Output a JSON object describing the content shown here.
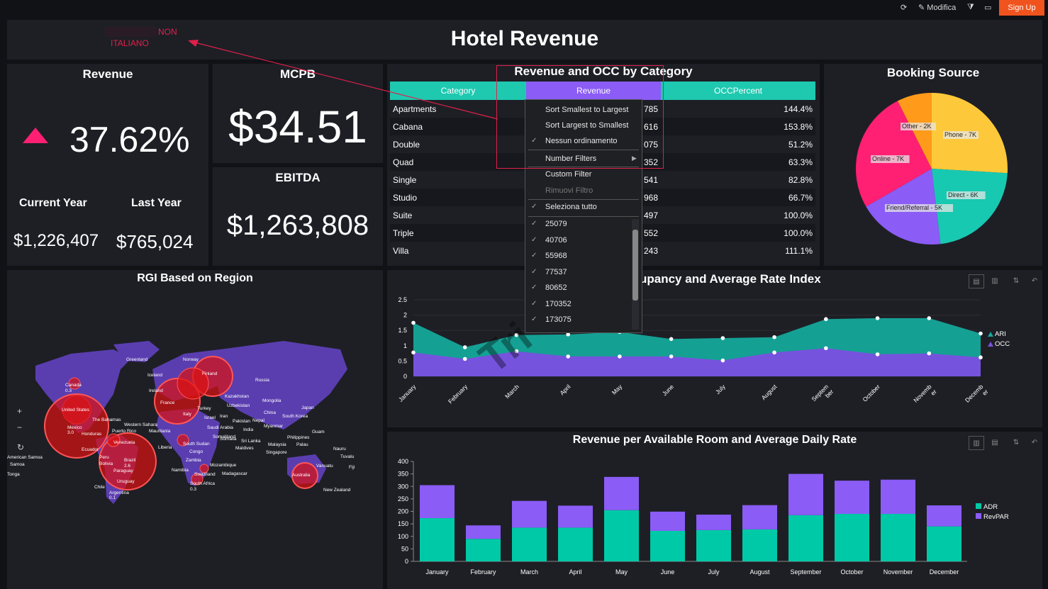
{
  "topbar": {
    "edit_label": "Modifica",
    "signup_label": "Sign Up"
  },
  "header": {
    "title": "Hotel Revenue",
    "annotation_line1": "NON",
    "annotation_line2": "ITALIANO"
  },
  "revenue_panel": {
    "title": "Revenue",
    "change": "37.62%",
    "current_year_label": "Current Year",
    "last_year_label": "Last Year",
    "current_year_value": "$1,226,407",
    "last_year_value": "$765,024"
  },
  "mcpb_panel": {
    "title": "MCPB",
    "value": "$34.51"
  },
  "ebitda_panel": {
    "title": "EBITDA",
    "value": "$1,263,808"
  },
  "category_table": {
    "title": "Revenue and OCC by Category",
    "headers": [
      "Category",
      "Revenue",
      "OCCPercent"
    ],
    "rows": [
      {
        "category": "Apartments",
        "revenue": "785",
        "occ": "144.4%"
      },
      {
        "category": "Cabana",
        "revenue": "616",
        "occ": "153.8%"
      },
      {
        "category": "Double",
        "revenue": "075",
        "occ": "51.2%"
      },
      {
        "category": "Quad",
        "revenue": "352",
        "occ": "63.3%"
      },
      {
        "category": "Single",
        "revenue": "541",
        "occ": "82.8%"
      },
      {
        "category": "Studio",
        "revenue": "968",
        "occ": "66.7%"
      },
      {
        "category": "Suite",
        "revenue": "497",
        "occ": "100.0%"
      },
      {
        "category": "Triple",
        "revenue": "552",
        "occ": "100.0%"
      },
      {
        "category": "Villa",
        "revenue": "243",
        "occ": "111.1%"
      }
    ],
    "colors": {
      "category_header": "#1ec9b0",
      "revenue_header": "#8b5cf6"
    }
  },
  "dropdown": {
    "items": [
      {
        "label": "Sort Smallest to Largest",
        "checked": false,
        "disabled": false
      },
      {
        "label": "Sort Largest to Smallest",
        "checked": false,
        "disabled": false
      },
      {
        "label": "Nessun ordinamento",
        "checked": true,
        "disabled": false
      },
      {
        "label": "Number Filters",
        "checked": false,
        "disabled": false,
        "submenu": true
      },
      {
        "label": "Custom Filter",
        "checked": false,
        "disabled": false
      },
      {
        "label": "Rimuovi Filtro",
        "checked": false,
        "disabled": true
      },
      {
        "label": "Seleziona tutto",
        "checked": true,
        "disabled": false
      }
    ],
    "values": [
      "25079",
      "40706",
      "55968",
      "77537",
      "80652",
      "170352",
      "173075"
    ]
  },
  "booking_source": {
    "title": "Booking Source"
  },
  "map_panel": {
    "title": "RGI Based on Region",
    "zoom_in": "+",
    "zoom_out": "−",
    "reset": "↻",
    "labels": [
      "Greenland",
      "Iceland",
      "Norway",
      "Finland",
      "Russia",
      "Ireland",
      "Canada",
      "0.3",
      "Kazakhstan",
      "Mongolia",
      "Uzbekistan",
      "Japan",
      "China",
      "South Korea",
      "United States",
      "The Bahamas",
      "Western Sahara",
      "Puerto Rico",
      "Mauritania",
      "Saudi Arabia",
      "India",
      "Myanmar",
      "Pakistan",
      "Nepal",
      "Iran",
      "Israel",
      "Turkey",
      "France",
      "Italy",
      "Mexico",
      "3.0",
      "Honduras",
      "Ecuador",
      "Venezuela",
      "Brazil",
      "2.6",
      "Peru",
      "Bolivia",
      "Paraguay",
      "Uruguay",
      "Chile",
      "Argentina",
      "0.1",
      "Liberia",
      "Congo",
      "South Sudan",
      "Somalia",
      "Somaliland",
      "Maldives",
      "Sri Lanka",
      "Malaysia",
      "Palau",
      "Philippines",
      "Guam",
      "Singapore",
      "Nauru",
      "Tuvalu",
      "Fiji",
      "Vanuatu",
      "Zambia",
      "Mozambique",
      "Namibia",
      "Swaziland",
      "Madagascar",
      "South Africa",
      "0.3",
      "Australia",
      "New Zealand",
      "American Samoa",
      "Samoa",
      "Tonga"
    ]
  },
  "occ_chart": {
    "title_visible": "upancy and Average Rate Index",
    "watermark": "Tri"
  },
  "revpar_chart": {
    "title": "Revenue per Available Room and Average Daily Rate"
  },
  "chart_data": [
    {
      "type": "pie",
      "title": "Booking Source",
      "slices": [
        {
          "label": "Phone - 7K",
          "value": 7,
          "color": "#fdc93a"
        },
        {
          "label": "Direct - 6K",
          "value": 6,
          "color": "#18c9b1"
        },
        {
          "label": "Friend/Referral - 5K",
          "value": 5,
          "color": "#8b5cf6"
        },
        {
          "label": "Online - 7K",
          "value": 7,
          "color": "#ff1f73"
        },
        {
          "label": "Other - 2K",
          "value": 2,
          "color": "#ff9a1a"
        }
      ]
    },
    {
      "type": "area",
      "title": "upancy and Average Rate Index",
      "categories": [
        "January",
        "February",
        "March",
        "April",
        "May",
        "June",
        "July",
        "August",
        "September",
        "October",
        "November",
        "December"
      ],
      "x_tick_labels": [
        "January",
        "February",
        "March",
        "April",
        "May",
        "June",
        "July",
        "August",
        "Septem|ber",
        "October",
        "Novemb|er",
        "Decemb|er"
      ],
      "series": [
        {
          "name": "ARI",
          "color": "#15a89a",
          "values": [
            1.75,
            0.95,
            1.35,
            1.37,
            1.45,
            1.22,
            1.25,
            1.28,
            1.87,
            1.9,
            1.9,
            1.4
          ]
        },
        {
          "name": "OCC",
          "color": "#7b4fe0",
          "values": [
            0.78,
            0.57,
            0.82,
            0.65,
            0.65,
            0.65,
            0.52,
            0.78,
            0.92,
            0.72,
            0.75,
            0.62
          ]
        }
      ],
      "yticks": [
        "0",
        "0.5",
        "1",
        "1.5",
        "2",
        "2.5"
      ],
      "ylim": [
        0,
        2.5
      ],
      "legend": "right"
    },
    {
      "type": "bar",
      "stacked": true,
      "title": "Revenue per Available Room and Average Daily Rate",
      "categories": [
        "January",
        "February",
        "March",
        "April",
        "May",
        "June",
        "July",
        "August",
        "September",
        "October",
        "November",
        "December"
      ],
      "series": [
        {
          "name": "ADR",
          "color": "#00c9a7",
          "values": [
            173,
            90,
            135,
            135,
            205,
            122,
            125,
            128,
            185,
            190,
            190,
            140
          ]
        },
        {
          "name": "RevPAR",
          "color": "#8b5cf6",
          "values": [
            132,
            54,
            107,
            88,
            133,
            77,
            62,
            97,
            165,
            133,
            137,
            84
          ]
        }
      ],
      "yticks": [
        "0",
        "50",
        "100",
        "150",
        "200",
        "250",
        "300",
        "350",
        "400"
      ],
      "ylim": [
        0,
        400
      ],
      "legend": "right"
    }
  ]
}
